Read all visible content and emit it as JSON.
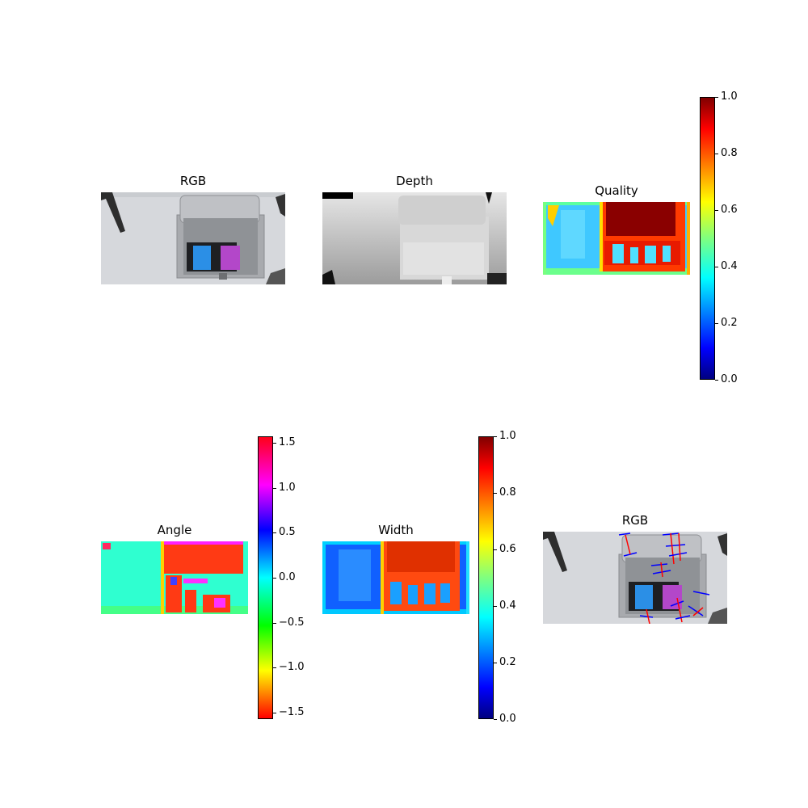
{
  "panels": {
    "rgb_top": {
      "title": "RGB"
    },
    "depth": {
      "title": "Depth"
    },
    "quality": {
      "title": "Quality"
    },
    "angle": {
      "title": "Angle"
    },
    "width": {
      "title": "Width"
    },
    "rgb_bottom": {
      "title": "RGB"
    }
  },
  "colorbars": {
    "quality": {
      "colormap": "jet",
      "range": [
        0.0,
        1.0
      ],
      "ticks": [
        "0.0",
        "0.2",
        "0.4",
        "0.6",
        "0.8",
        "1.0"
      ]
    },
    "angle": {
      "colormap": "hsv",
      "range": [
        -1.5708,
        1.5708
      ],
      "ticks": [
        "−1.5",
        "−1.0",
        "−0.5",
        "0.0",
        "0.5",
        "1.0",
        "1.5"
      ]
    },
    "width": {
      "colormap": "jet",
      "range": [
        0.0,
        1.0
      ],
      "ticks": [
        "0.0",
        "0.2",
        "0.4",
        "0.6",
        "0.8",
        "1.0"
      ]
    }
  },
  "chart_data": [
    {
      "type": "heatmap",
      "title": "RGB"
    },
    {
      "type": "heatmap",
      "title": "Depth",
      "colormap": "gray"
    },
    {
      "type": "heatmap",
      "title": "Quality",
      "colormap": "jet",
      "range": [
        0,
        1
      ]
    },
    {
      "type": "heatmap",
      "title": "Angle",
      "colormap": "hsv",
      "range": [
        -1.5708,
        1.5708
      ]
    },
    {
      "type": "heatmap",
      "title": "Width",
      "colormap": "jet",
      "range": [
        0,
        1
      ]
    },
    {
      "type": "heatmap",
      "title": "RGB",
      "grasp_marker_colors": [
        "#ff0000",
        "#0000ff"
      ]
    }
  ],
  "colors": {
    "jet_high": "#800000",
    "jet_low": "#00007f",
    "grasp_center": "#ff0000",
    "grasp_jaw": "#0000ff"
  }
}
